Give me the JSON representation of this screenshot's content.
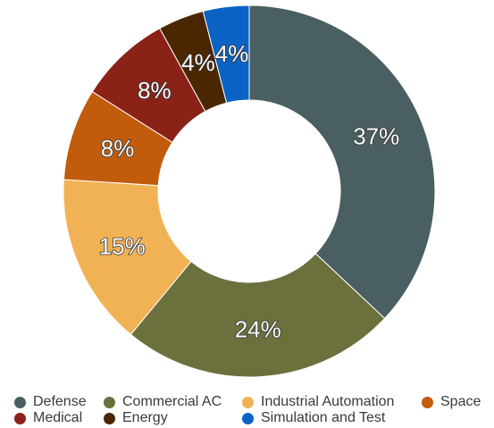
{
  "chart_data": {
    "type": "pie",
    "variant": "doughnut",
    "categories": [
      "Defense",
      "Commercial AC",
      "Industrial Automation",
      "Space",
      "Medical",
      "Energy",
      "Simulation and Test"
    ],
    "values": [
      37,
      24,
      15,
      8,
      8,
      4,
      4
    ],
    "labels": [
      "37%",
      "24%",
      "15%",
      "8%",
      "8%",
      "4%",
      "4%"
    ],
    "colors": [
      "#4a5f62",
      "#6b703c",
      "#f0b254",
      "#c05c0c",
      "#8b2218",
      "#4a2700",
      "#0a63c4"
    ],
    "legend_placement": "bottom",
    "title": ""
  }
}
